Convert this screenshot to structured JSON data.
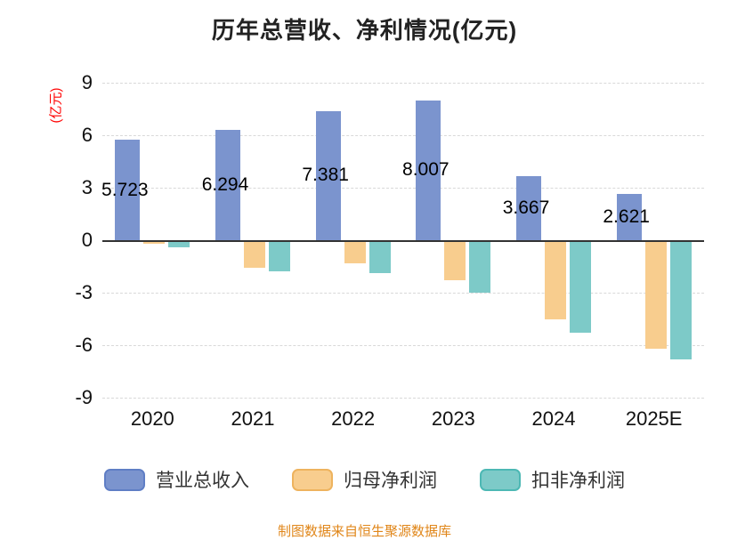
{
  "title": "历年总营收、净利情况(亿元)",
  "y_axis_label": "(亿元)",
  "footer": "制图数据来自恒生聚源数据库",
  "colors": {
    "revenue_bar": "#7b94ce",
    "revenue_border": "#5f7ec5",
    "net_profit_bar": "#f8cd8e",
    "net_profit_border": "#eeb35e",
    "non_recurring_bar": "#7dcac8",
    "non_recurring_border": "#4db8b4",
    "axis_title_red": "#ff0000",
    "footer_orange": "#e08619",
    "gridline": "#d9d9d9",
    "zero_line": "#333333"
  },
  "chart_data": {
    "type": "bar",
    "title": "历年总营收、净利情况(亿元)",
    "xlabel": "",
    "ylabel": "(亿元)",
    "categories": [
      "2020",
      "2021",
      "2022",
      "2023",
      "2024",
      "2025E"
    ],
    "yticks": [
      9,
      6,
      3,
      0,
      -3,
      -6,
      -9
    ],
    "ylim": [
      -9,
      9
    ],
    "grid": "horizontal-dashed",
    "legend_position": "bottom",
    "series": [
      {
        "name": "营业总收入",
        "color": "#7b94ce",
        "border": "#5f7ec5",
        "values": [
          5.723,
          6.294,
          7.381,
          8.007,
          3.667,
          2.621
        ],
        "labels": [
          "5.723",
          "6.294",
          "7.381",
          "8.007",
          "3.667",
          "2.621"
        ]
      },
      {
        "name": "归母净利润",
        "color": "#f8cd8e",
        "border": "#eeb35e",
        "values": [
          -0.2,
          -1.6,
          -1.3,
          -2.3,
          -4.5,
          -6.2
        ]
      },
      {
        "name": "扣非净利润",
        "color": "#7dcac8",
        "border": "#4db8b4",
        "values": [
          -0.4,
          -1.8,
          -1.9,
          -3.0,
          -5.3,
          -6.8
        ]
      }
    ],
    "footer": "制图数据来自恒生聚源数据库"
  }
}
